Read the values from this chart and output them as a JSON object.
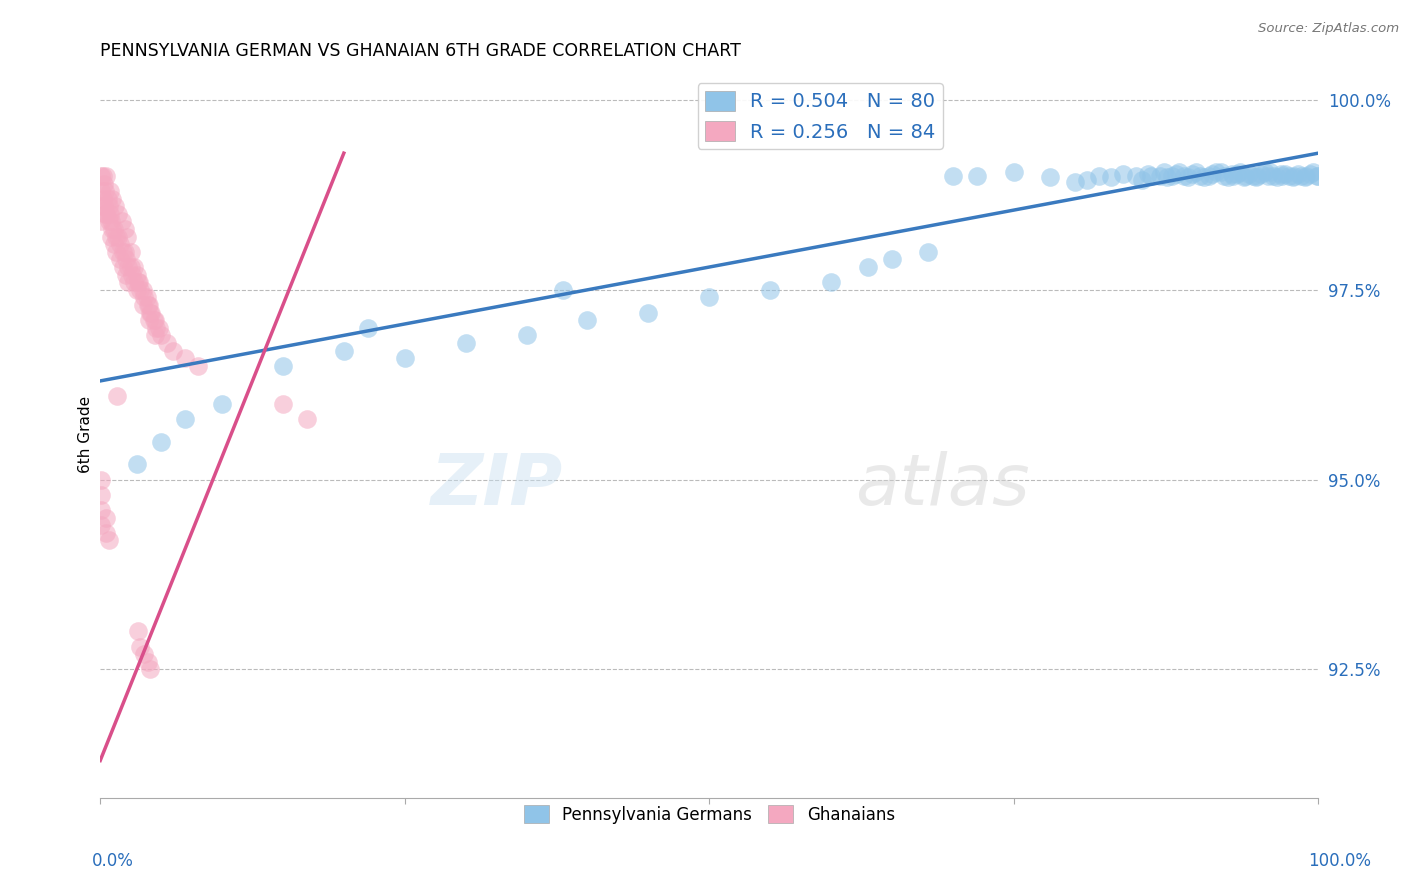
{
  "title": "PENNSYLVANIA GERMAN VS GHANAIAN 6TH GRADE CORRELATION CHART",
  "source": "Source: ZipAtlas.com",
  "ylabel": "6th Grade",
  "yticks": [
    0.925,
    0.95,
    0.975,
    1.0
  ],
  "ytick_labels": [
    "92.5%",
    "95.0%",
    "97.5%",
    "100.0%"
  ],
  "xlim": [
    0.0,
    1.0
  ],
  "ylim": [
    0.908,
    1.004
  ],
  "legend_blue_label": "R = 0.504   N = 80",
  "legend_pink_label": "R = 0.256   N = 84",
  "legend_bottom_blue": "Pennsylvania Germans",
  "legend_bottom_pink": "Ghanaians",
  "blue_color": "#90c4e8",
  "pink_color": "#f4a8c0",
  "blue_line_color": "#3a7abf",
  "pink_line_color": "#d94f8a",
  "blue_scatter_x": [
    0.7,
    0.72,
    0.75,
    0.78,
    0.8,
    0.81,
    0.82,
    0.83,
    0.84,
    0.85,
    0.855,
    0.86,
    0.863,
    0.87,
    0.873,
    0.876,
    0.88,
    0.883,
    0.886,
    0.89,
    0.893,
    0.896,
    0.9,
    0.903,
    0.906,
    0.91,
    0.913,
    0.916,
    0.92,
    0.923,
    0.926,
    0.929,
    0.93,
    0.933,
    0.936,
    0.939,
    0.94,
    0.943,
    0.946,
    0.949,
    0.95,
    0.953,
    0.956,
    0.959,
    0.96,
    0.963,
    0.966,
    0.969,
    0.97,
    0.973,
    0.976,
    0.979,
    0.98,
    0.983,
    0.986,
    0.989,
    0.99,
    0.993,
    0.996,
    0.999,
    1.0,
    0.38,
    0.22,
    0.15,
    0.1,
    0.07,
    0.05,
    0.03,
    0.55,
    0.63,
    0.68,
    0.3,
    0.25,
    0.45,
    0.5,
    0.6,
    0.35,
    0.2,
    0.4,
    0.65
  ],
  "blue_scatter_y": [
    0.99,
    0.99,
    0.9905,
    0.9898,
    0.9892,
    0.9895,
    0.99,
    0.9898,
    0.9902,
    0.99,
    0.9895,
    0.9903,
    0.99,
    0.99,
    0.9905,
    0.9898,
    0.99,
    0.9902,
    0.9905,
    0.99,
    0.9898,
    0.9903,
    0.9905,
    0.99,
    0.9898,
    0.99,
    0.9902,
    0.9905,
    0.9905,
    0.99,
    0.9898,
    0.9903,
    0.99,
    0.9902,
    0.9905,
    0.9898,
    0.99,
    0.9902,
    0.99,
    0.9898,
    0.99,
    0.9902,
    0.9905,
    0.99,
    0.9905,
    0.99,
    0.9898,
    0.9902,
    0.99,
    0.9902,
    0.99,
    0.9898,
    0.99,
    0.9902,
    0.99,
    0.9898,
    0.99,
    0.9902,
    0.9905,
    0.99,
    0.99,
    0.975,
    0.97,
    0.965,
    0.96,
    0.958,
    0.955,
    0.952,
    0.975,
    0.978,
    0.98,
    0.968,
    0.966,
    0.972,
    0.974,
    0.976,
    0.969,
    0.967,
    0.971,
    0.979
  ],
  "pink_scatter_x": [
    0.005,
    0.005,
    0.008,
    0.01,
    0.01,
    0.012,
    0.015,
    0.015,
    0.018,
    0.02,
    0.02,
    0.022,
    0.025,
    0.025,
    0.028,
    0.03,
    0.03,
    0.032,
    0.035,
    0.035,
    0.038,
    0.04,
    0.04,
    0.042,
    0.045,
    0.045,
    0.048,
    0.002,
    0.002,
    0.003,
    0.003,
    0.004,
    0.004,
    0.006,
    0.007,
    0.007,
    0.008,
    0.009,
    0.009,
    0.011,
    0.011,
    0.013,
    0.013,
    0.016,
    0.016,
    0.019,
    0.019,
    0.021,
    0.021,
    0.023,
    0.023,
    0.026,
    0.028,
    0.031,
    0.001,
    0.001,
    0.001,
    0.001,
    0.001,
    0.001,
    0.001,
    0.001,
    0.005,
    0.005,
    0.007,
    0.014,
    0.05,
    0.055,
    0.06,
    0.07,
    0.08,
    0.15,
    0.17,
    0.033,
    0.036,
    0.039,
    0.041,
    0.044,
    0.046,
    0.031,
    0.033,
    0.036,
    0.039,
    0.041
  ],
  "pink_scatter_y": [
    0.99,
    0.985,
    0.988,
    0.987,
    0.983,
    0.986,
    0.985,
    0.982,
    0.984,
    0.983,
    0.98,
    0.982,
    0.98,
    0.978,
    0.978,
    0.977,
    0.975,
    0.976,
    0.975,
    0.973,
    0.974,
    0.973,
    0.971,
    0.972,
    0.971,
    0.969,
    0.97,
    0.99,
    0.987,
    0.989,
    0.986,
    0.988,
    0.985,
    0.987,
    0.986,
    0.984,
    0.985,
    0.984,
    0.982,
    0.983,
    0.981,
    0.982,
    0.98,
    0.981,
    0.979,
    0.98,
    0.978,
    0.979,
    0.977,
    0.978,
    0.976,
    0.977,
    0.976,
    0.976,
    0.99,
    0.988,
    0.986,
    0.984,
    0.95,
    0.948,
    0.946,
    0.944,
    0.945,
    0.943,
    0.942,
    0.961,
    0.969,
    0.968,
    0.967,
    0.966,
    0.965,
    0.96,
    0.958,
    0.975,
    0.974,
    0.973,
    0.972,
    0.971,
    0.97,
    0.93,
    0.928,
    0.927,
    0.926,
    0.925
  ],
  "blue_line_x_start": 0.0,
  "blue_line_x_end": 1.0,
  "blue_line_y_start": 0.963,
  "blue_line_y_end": 0.993,
  "pink_line_x_start": 0.0,
  "pink_line_x_end": 0.2,
  "pink_line_y_start": 0.913,
  "pink_line_y_end": 0.993
}
